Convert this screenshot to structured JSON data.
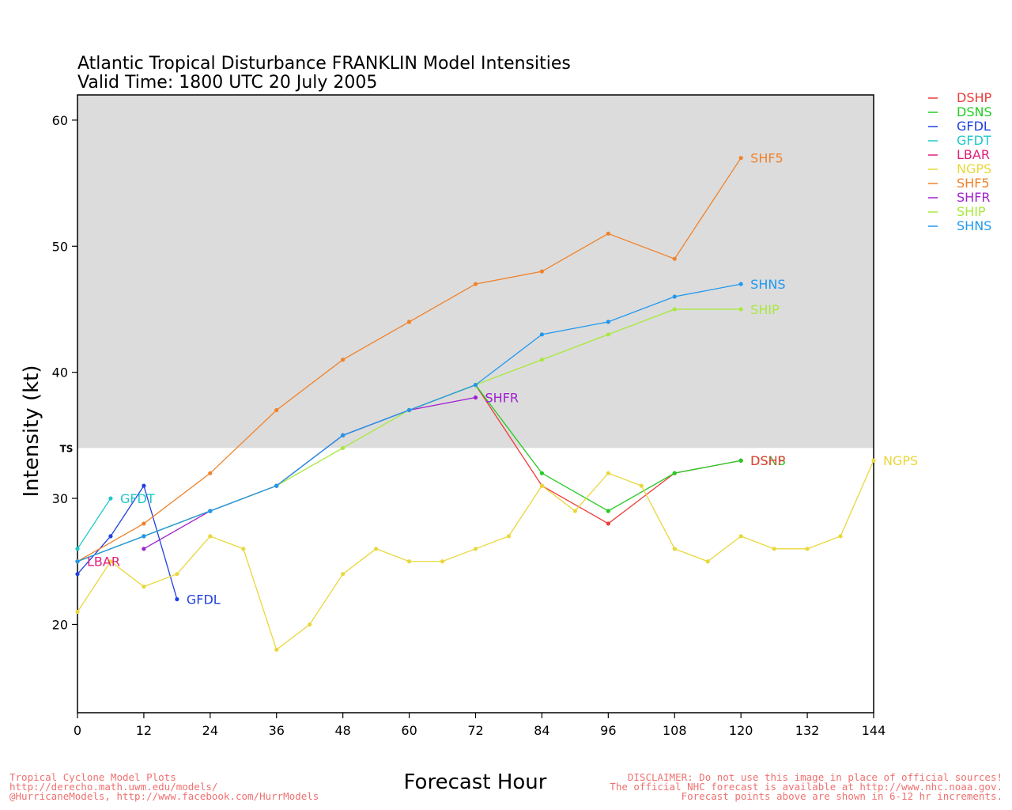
{
  "chart_data": {
    "type": "line",
    "title": "Atlantic Tropical Disturbance FRANKLIN Model Intensities",
    "subtitle": "Valid Time: 1800 UTC 20 July 2005",
    "xlabel": "Forecast Hour",
    "ylabel": "Intensity (kt)",
    "xlim": [
      0,
      144
    ],
    "ylim": [
      13,
      62
    ],
    "xticks": [
      0,
      12,
      24,
      36,
      48,
      60,
      72,
      84,
      96,
      108,
      120,
      132,
      144
    ],
    "yticks": [
      20,
      30,
      40,
      50,
      60
    ],
    "band": {
      "label": "TS",
      "from": 34,
      "to": 62,
      "color": "#dcdcdc"
    },
    "legend_position": "top-right",
    "series": [
      {
        "name": "DSHP",
        "color": "#ee3c3c",
        "points": [
          [
            0,
            25
          ],
          [
            12,
            27
          ],
          [
            24,
            29
          ],
          [
            36,
            31
          ],
          [
            48,
            35
          ],
          [
            60,
            37
          ],
          [
            72,
            39
          ],
          [
            84,
            31
          ],
          [
            96,
            28
          ],
          [
            108,
            32
          ],
          [
            120,
            33
          ]
        ]
      },
      {
        "name": "DSNS",
        "color": "#22cc22",
        "points": [
          [
            0,
            25
          ],
          [
            12,
            27
          ],
          [
            24,
            29
          ],
          [
            36,
            31
          ],
          [
            48,
            35
          ],
          [
            60,
            37
          ],
          [
            72,
            39
          ],
          [
            84,
            32
          ],
          [
            96,
            29
          ],
          [
            108,
            32
          ],
          [
            120,
            33
          ]
        ]
      },
      {
        "name": "GFDL",
        "color": "#2040e0",
        "points": [
          [
            0,
            24
          ],
          [
            6,
            27
          ],
          [
            12,
            31
          ],
          [
            18,
            22
          ]
        ]
      },
      {
        "name": "GFDT",
        "color": "#1fc8c8",
        "points": [
          [
            0,
            26
          ],
          [
            6,
            30
          ]
        ]
      },
      {
        "name": "LBAR",
        "color": "#e0207a",
        "points": [
          [
            0,
            25
          ]
        ]
      },
      {
        "name": "NGPS",
        "color": "#e8d83c",
        "points": [
          [
            0,
            21
          ],
          [
            6,
            25
          ],
          [
            12,
            23
          ],
          [
            18,
            24
          ],
          [
            24,
            27
          ],
          [
            30,
            26
          ],
          [
            36,
            18
          ],
          [
            42,
            20
          ],
          [
            48,
            24
          ],
          [
            54,
            26
          ],
          [
            60,
            25
          ],
          [
            66,
            25
          ],
          [
            72,
            26
          ],
          [
            78,
            27
          ],
          [
            84,
            31
          ],
          [
            90,
            29
          ],
          [
            96,
            32
          ],
          [
            102,
            31
          ],
          [
            108,
            26
          ],
          [
            114,
            25
          ],
          [
            120,
            27
          ],
          [
            126,
            26
          ],
          [
            132,
            26
          ],
          [
            138,
            27
          ],
          [
            144,
            33
          ]
        ]
      },
      {
        "name": "SHF5",
        "color": "#f0822a",
        "points": [
          [
            0,
            25
          ],
          [
            12,
            28
          ],
          [
            24,
            32
          ],
          [
            36,
            37
          ],
          [
            48,
            41
          ],
          [
            60,
            44
          ],
          [
            72,
            47
          ],
          [
            84,
            48
          ],
          [
            96,
            51
          ],
          [
            108,
            49
          ],
          [
            120,
            57
          ]
        ]
      },
      {
        "name": "SHFR",
        "color": "#a020d0",
        "points": [
          [
            12,
            26
          ],
          [
            24,
            29
          ],
          [
            36,
            31
          ],
          [
            48,
            35
          ],
          [
            60,
            37
          ],
          [
            72,
            38
          ]
        ]
      },
      {
        "name": "SHIP",
        "color": "#a8e83c",
        "points": [
          [
            0,
            25
          ],
          [
            12,
            27
          ],
          [
            24,
            29
          ],
          [
            36,
            31
          ],
          [
            48,
            34
          ],
          [
            60,
            37
          ],
          [
            72,
            39
          ],
          [
            84,
            41
          ],
          [
            96,
            43
          ],
          [
            108,
            45
          ],
          [
            120,
            45
          ]
        ]
      },
      {
        "name": "SHNS",
        "color": "#2098f0",
        "points": [
          [
            0,
            25
          ],
          [
            12,
            27
          ],
          [
            24,
            29
          ],
          [
            36,
            31
          ],
          [
            48,
            35
          ],
          [
            60,
            37
          ],
          [
            72,
            39
          ],
          [
            84,
            43
          ],
          [
            96,
            44
          ],
          [
            108,
            46
          ],
          [
            120,
            47
          ]
        ]
      }
    ],
    "end_labels": [
      {
        "series": "SHF5",
        "text": "SHF5"
      },
      {
        "series": "SHNS",
        "text": "SHNS"
      },
      {
        "series": "SHIP",
        "text": "SHIP"
      },
      {
        "series": "SHFR",
        "text": "SHFR"
      },
      {
        "series": "DSNS",
        "text": "DSNS"
      },
      {
        "series": "DSHP",
        "text": "DSHP"
      },
      {
        "series": "NGPS",
        "text": "NGPS"
      },
      {
        "series": "GFDT",
        "text": "GFDT"
      },
      {
        "series": "GFDL",
        "text": "GFDL"
      },
      {
        "series": "LBAR",
        "text": "LBAR"
      }
    ]
  },
  "footer": {
    "left_lines": [
      "Tropical Cyclone Model Plots",
      "http://derecho.math.uwm.edu/models/",
      "@HurricaneModels, http://www.facebook.com/HurrModels"
    ],
    "right_lines": [
      "DISCLAIMER: Do not use this image in place of official sources!",
      "The official NHC forecast is available at http://www.nhc.noaa.gov.",
      "Forecast points above are shown in 6-12 hr increments."
    ]
  }
}
